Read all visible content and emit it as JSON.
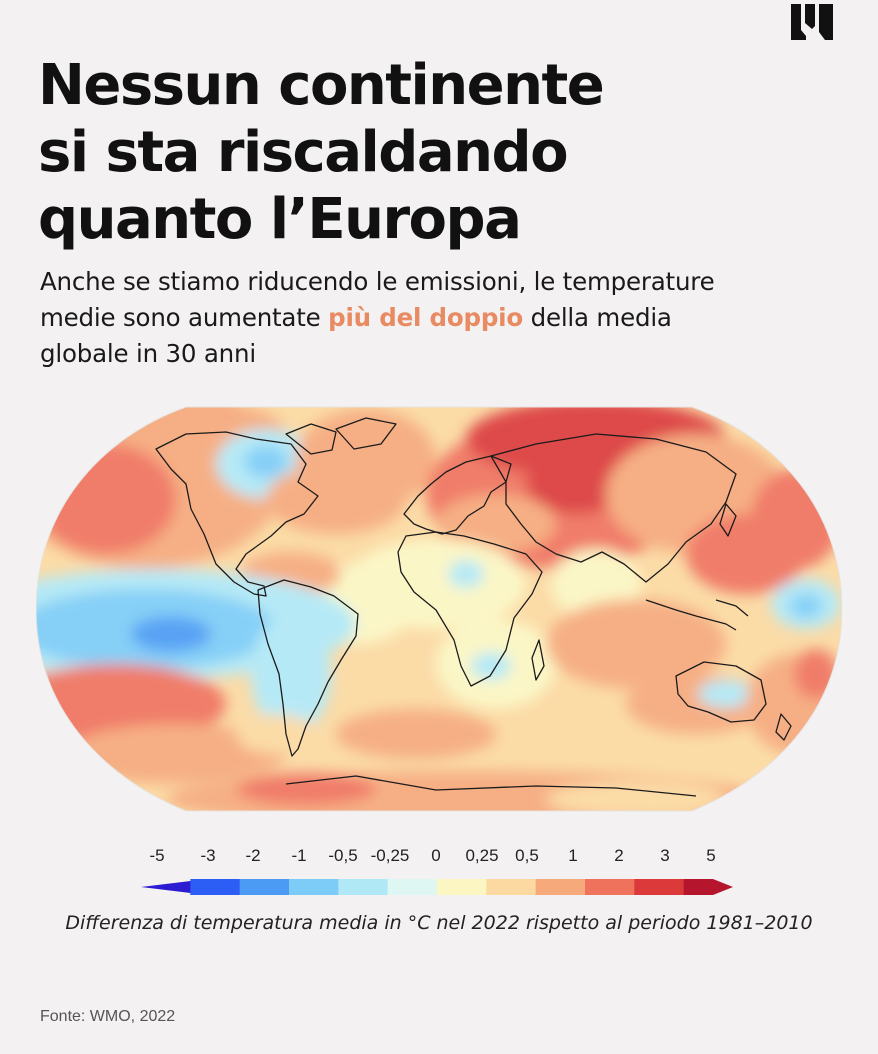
{
  "title_lines": [
    "Nessun continente",
    "si sta riscaldando",
    "quanto l’Europa"
  ],
  "subtitle": {
    "line1": "Anche se stiamo riducendo le emissioni, le temperature",
    "line2_pre": "medie sono aumentate ",
    "line2_highlight": "più del doppio",
    "line2_post": " della media",
    "line3": "globale in 30 anni"
  },
  "legend": {
    "labels": [
      "-5",
      "-3",
      "-2",
      "-1",
      "-0,5",
      "-0,25",
      "0",
      "0,25",
      "0,5",
      "1",
      "2",
      "3",
      "5"
    ],
    "colors": [
      "#2b1bd1",
      "#2c5df4",
      "#4b9bf4",
      "#7cccf7",
      "#b0e8f6",
      "#def7f3",
      "#fbf6c2",
      "#fbd9a0",
      "#f6a97a",
      "#ef725d",
      "#dc3a3a",
      "#b5152d"
    ]
  },
  "caption": "Differenza di temperatura media in °C nel 2022 rispetto al periodo 1981–2010",
  "source": "Fonte: WMO, 2022",
  "colors": {
    "background": "#f3f1f1",
    "highlight": "#e88a62",
    "warm_1": "#fbd9a0",
    "warm_2": "#f6a97a",
    "warm_3": "#ef725d",
    "warm_4": "#dc3a3a",
    "cool_1": "#b0e8f6",
    "cool_2": "#7cccf7",
    "cool_3": "#4b9bf4"
  },
  "icons": {
    "logo": "publisher-logo"
  }
}
